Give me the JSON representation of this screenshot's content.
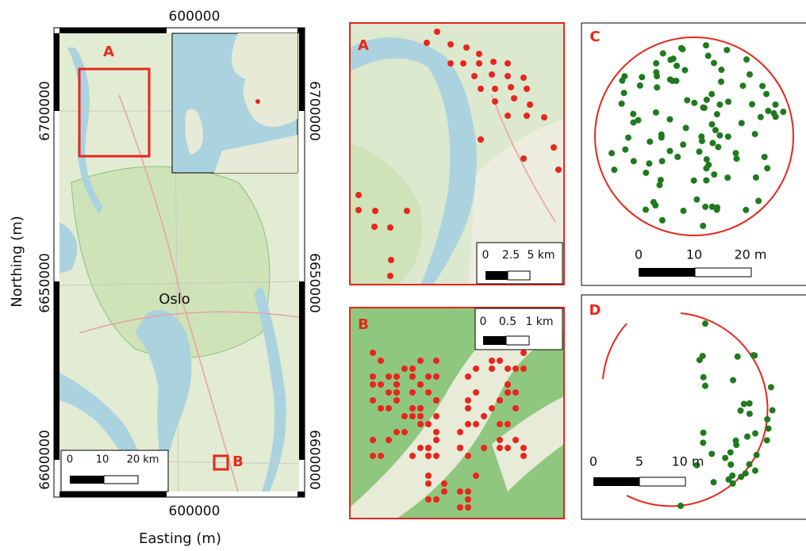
{
  "overview_map": {
    "x_axis_label": "Easting (m)",
    "y_axis_label": "Northing (m)",
    "x_ticks_top": [
      "600000"
    ],
    "x_ticks_bottom": [
      "600000"
    ],
    "y_ticks_left": [
      "6700000",
      "6650000",
      "6600000"
    ],
    "y_ticks_right": [
      "6700000",
      "6650000",
      "6600000"
    ],
    "place_label": "Oslo",
    "area_labels": [
      "A",
      "B"
    ],
    "scale_bar": [
      "0",
      "10",
      "20 km"
    ]
  },
  "panels": [
    {
      "label": "A",
      "scale_bar": [
        "0",
        "2.5",
        "5 km"
      ]
    },
    {
      "label": "B",
      "scale_bar": [
        "0",
        "0.5",
        "1 km"
      ]
    },
    {
      "label": "C",
      "scale_bar": [
        "0",
        "10",
        "20 m"
      ]
    },
    {
      "label": "D",
      "scale_bar": [
        "0",
        "5",
        "10 m"
      ]
    }
  ]
}
